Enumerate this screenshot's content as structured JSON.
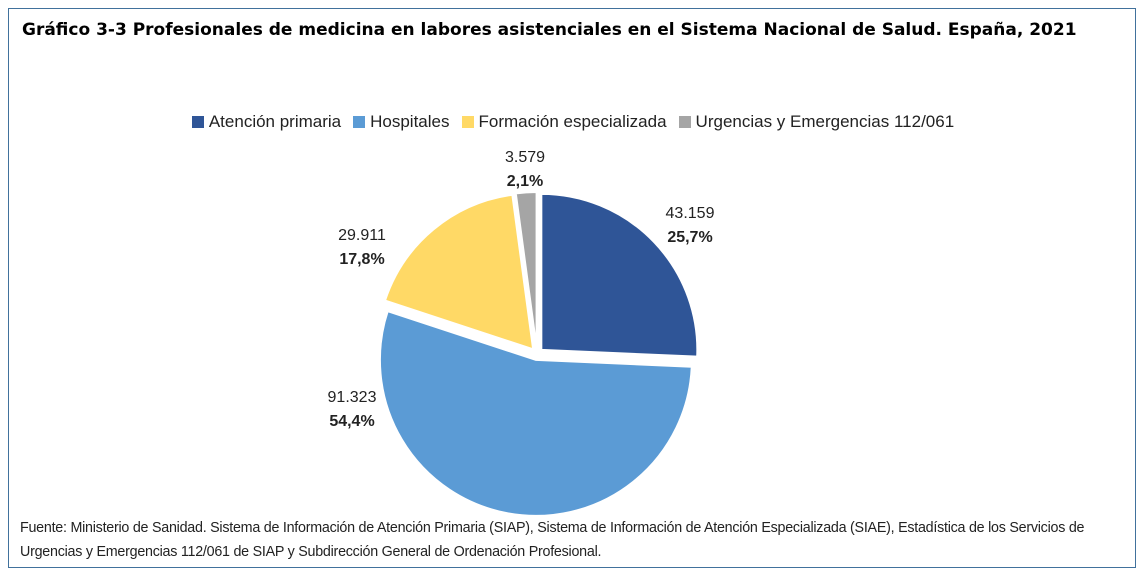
{
  "chart_data": {
    "type": "pie",
    "title": "Gráfico 3-3 Profesionales de medicina en labores asistenciales en el Sistema Nacional de Salud. España, 2021",
    "categories": [
      "Atención primaria",
      "Hospitales",
      "Formación especializada",
      "Urgencias y Emergencias 112/061"
    ],
    "values": [
      43159,
      91323,
      29911,
      3579
    ],
    "value_labels": [
      "43.159",
      "91.323",
      "29.911",
      "3.579"
    ],
    "percentages": [
      25.7,
      54.4,
      17.8,
      2.1
    ],
    "percentage_labels": [
      "25,7%",
      "54,4%",
      "17,8%",
      "2,1%"
    ],
    "colors": [
      "#2f5597",
      "#5b9bd5",
      "#ffd966",
      "#a5a5a5"
    ],
    "legend": "top",
    "source": "Fuente: Ministerio de Sanidad. Sistema de Información de Atención Primaria (SIAP), Sistema de Información de Atención Especializada (SIAE), Estadística de los Servicios de Urgencias y Emergencias 112/061 de SIAP y Subdirección General de Ordenación Profesional."
  }
}
